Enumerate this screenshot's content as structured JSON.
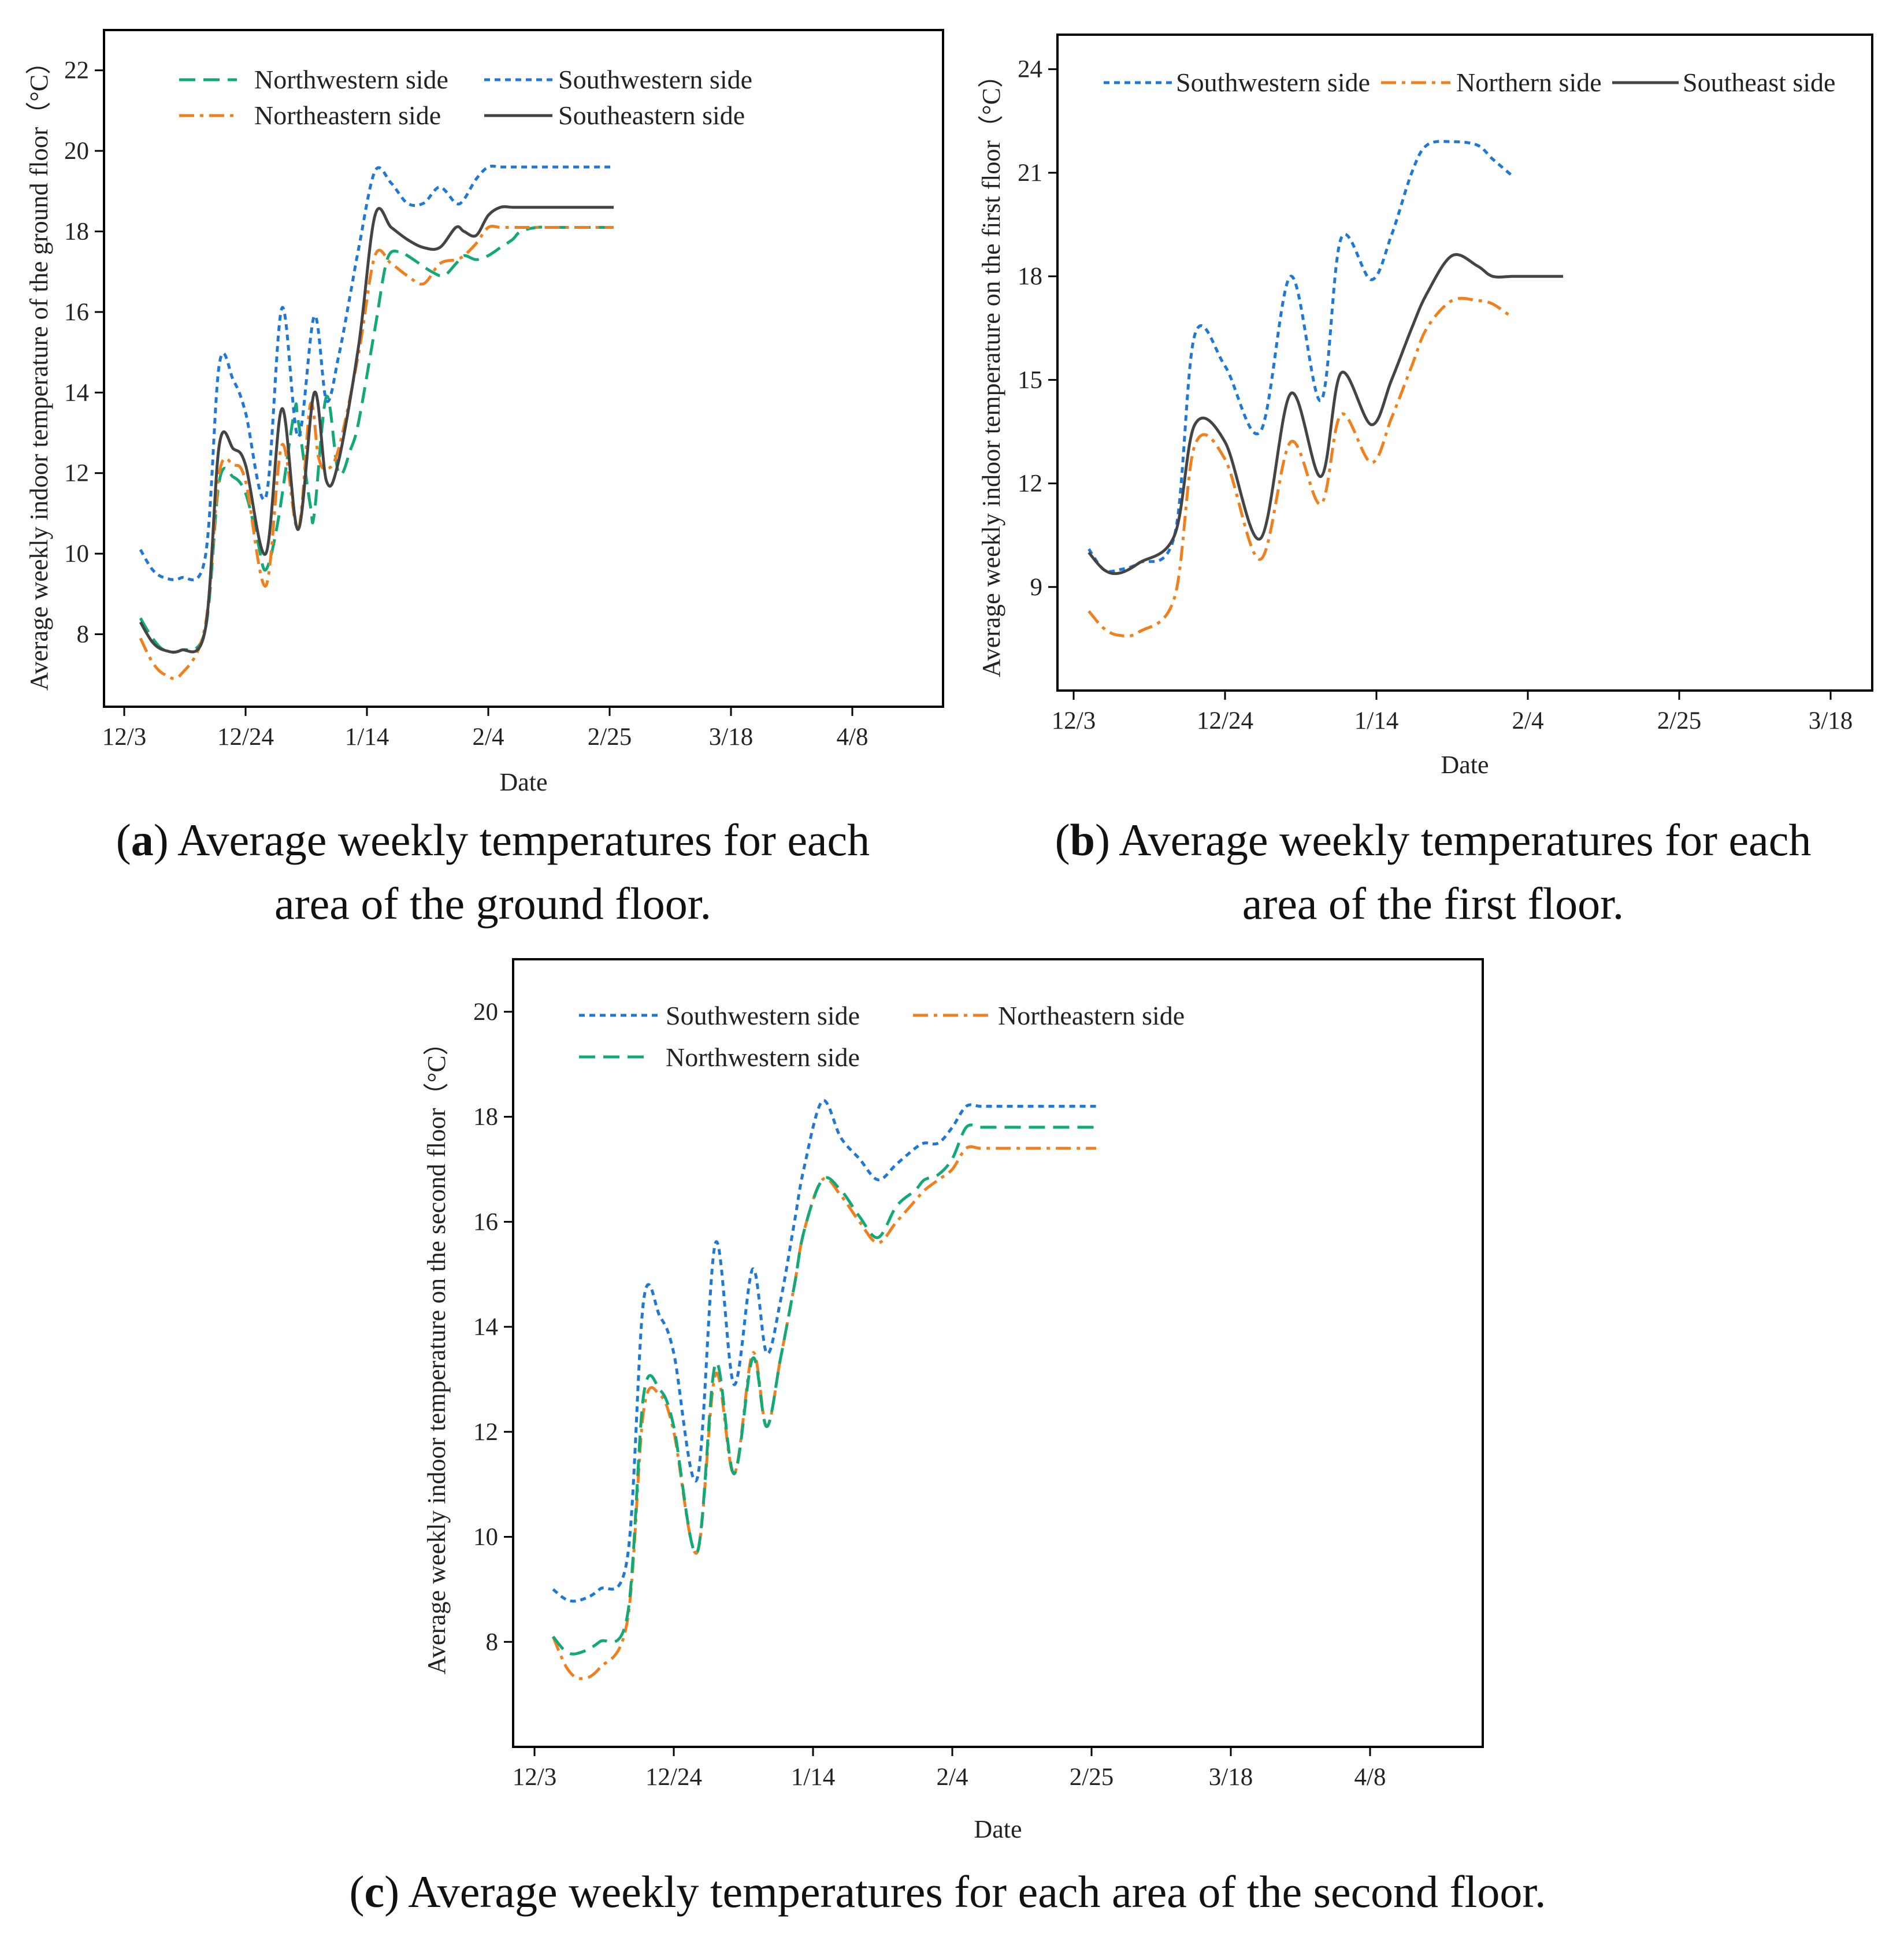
{
  "colors": {
    "blue": "#1f78d6",
    "green": "#13a878",
    "orange": "#f07f1e",
    "black": "#444444"
  },
  "chart_data": [
    {
      "id": "a",
      "type": "line",
      "caption_label": "a",
      "caption_lines": [
        "Average weekly temperatures for each",
        "area of the ground floor."
      ],
      "xlabel": "Date",
      "ylabel": "Average weekly indoor temperature of the ground floor（°C）",
      "x_ticks": [
        "12/3",
        "12/24",
        "1/14",
        "2/4",
        "2/25",
        "3/18",
        "4/8"
      ],
      "ylim": [
        6.2,
        23
      ],
      "y_ticks": [
        8,
        10,
        12,
        14,
        16,
        18,
        20,
        22
      ],
      "series": [
        {
          "name": "Northwestern side",
          "style": "dash",
          "color": "green",
          "x": [
            0.4,
            0.7,
            1.0,
            1.4,
            2.0,
            2.35,
            2.7,
            3.0,
            3.3,
            3.5,
            3.8,
            4.2,
            4.3,
            4.6,
            4.7,
            5.0,
            5.3,
            5.6,
            5.8,
            6.2,
            6.5,
            6.8,
            7.0,
            7.3,
            7.6,
            7.9,
            8.2,
            8.4,
            8.7,
            9.0,
            9.3,
            9.6,
            9.8,
            10.2,
            10.6,
            11.0,
            11.4,
            12.1
          ],
          "values": [
            8.4,
            7.9,
            7.6,
            7.6,
            8.1,
            11.8,
            11.9,
            11.5,
            10.3,
            9.6,
            10.8,
            13.5,
            13.3,
            11.2,
            11.0,
            13.9,
            12.0,
            12.6,
            13.3,
            15.6,
            17.3,
            17.5,
            17.4,
            17.2,
            17.0,
            16.9,
            17.2,
            17.4,
            17.3,
            17.4,
            17.6,
            17.8,
            18.0,
            18.1,
            18.1,
            18.1,
            18.1,
            18.1
          ]
        },
        {
          "name": "Southwestern side",
          "style": "dot",
          "color": "blue",
          "x": [
            0.4,
            0.7,
            1.0,
            1.4,
            2.0,
            2.35,
            2.7,
            3.0,
            3.5,
            3.9,
            4.3,
            4.7,
            5.0,
            5.3,
            5.6,
            5.8,
            6.2,
            6.6,
            7.0,
            7.4,
            7.8,
            8.2,
            8.4,
            8.7,
            9.0,
            9.3,
            9.6,
            9.9,
            10.2,
            10.6,
            11.0,
            12.1
          ],
          "values": [
            10.1,
            9.6,
            9.4,
            9.4,
            9.9,
            14.7,
            14.3,
            13.5,
            11.4,
            16.1,
            12.9,
            15.9,
            13.8,
            14.9,
            16.5,
            17.6,
            19.5,
            19.2,
            18.7,
            18.7,
            19.1,
            18.7,
            18.8,
            19.3,
            19.6,
            19.6,
            19.6,
            19.6,
            19.6,
            19.6,
            19.6,
            19.6
          ]
        },
        {
          "name": "Northeastern side",
          "style": "dashdot",
          "color": "orange",
          "x": [
            0.4,
            0.7,
            1.0,
            1.4,
            2.0,
            2.35,
            2.7,
            3.0,
            3.5,
            3.9,
            4.3,
            4.6,
            4.8,
            5.0,
            5.3,
            5.8,
            6.2,
            6.6,
            7.0,
            7.4,
            7.8,
            8.2,
            8.4,
            8.7,
            9.0,
            9.3,
            9.6,
            9.9,
            10.2,
            10.6,
            11.0,
            12.1
          ],
          "values": [
            7.9,
            7.3,
            7.0,
            7.0,
            8.2,
            12.0,
            12.2,
            11.8,
            9.2,
            12.7,
            10.6,
            13.7,
            12.4,
            12.1,
            12.6,
            15.0,
            17.4,
            17.2,
            16.9,
            16.7,
            17.2,
            17.3,
            17.4,
            17.7,
            18.1,
            18.1,
            18.1,
            18.1,
            18.1,
            18.1,
            18.1,
            18.1
          ]
        },
        {
          "name": "Southeastern side",
          "style": "solid",
          "color": "black",
          "x": [
            0.4,
            0.7,
            1.0,
            1.4,
            2.0,
            2.35,
            2.7,
            3.0,
            3.5,
            3.9,
            4.3,
            4.7,
            5.0,
            5.3,
            5.8,
            6.2,
            6.6,
            7.0,
            7.4,
            7.8,
            8.2,
            8.4,
            8.7,
            9.0,
            9.3,
            9.6,
            9.9,
            10.2,
            10.6,
            11.0,
            12.1
          ],
          "values": [
            8.3,
            7.8,
            7.6,
            7.6,
            8.1,
            12.7,
            12.6,
            12.2,
            10.0,
            13.6,
            10.6,
            14.0,
            11.8,
            12.3,
            15.2,
            18.4,
            18.1,
            17.8,
            17.6,
            17.6,
            18.1,
            18.0,
            17.9,
            18.4,
            18.6,
            18.6,
            18.6,
            18.6,
            18.6,
            18.6,
            18.6
          ]
        }
      ]
    },
    {
      "id": "b",
      "type": "line",
      "caption_label": "b",
      "caption_lines": [
        "Average weekly temperatures for each",
        "area of the first floor."
      ],
      "xlabel": "Date",
      "ylabel": "Average weekly indoor temperature on the first floor（°C）",
      "x_ticks": [
        "12/3",
        "12/24",
        "1/14",
        "2/4",
        "2/25",
        "3/18"
      ],
      "ylim": [
        6,
        25
      ],
      "y_ticks": [
        9,
        12,
        15,
        18,
        21,
        24
      ],
      "series": [
        {
          "name": "Southwestern side",
          "style": "dot",
          "color": "blue",
          "x": [
            0.3,
            0.6,
            0.9,
            1.3,
            2.0,
            2.4,
            3.0,
            3.7,
            4.3,
            4.9,
            5.3,
            5.9,
            6.3,
            6.7,
            7.0,
            7.5,
            8.0,
            8.3,
            8.7
          ],
          "values": [
            10.1,
            9.5,
            9.5,
            9.7,
            10.5,
            16.3,
            15.4,
            13.5,
            18.0,
            14.4,
            19.1,
            17.9,
            19.2,
            21.0,
            21.8,
            21.9,
            21.8,
            21.4,
            20.9
          ]
        },
        {
          "name": "Northern side",
          "style": "dashdot",
          "color": "orange",
          "x": [
            0.3,
            0.6,
            0.9,
            1.3,
            2.0,
            2.4,
            3.0,
            3.7,
            4.3,
            4.9,
            5.3,
            5.9,
            6.3,
            6.7,
            7.0,
            7.5,
            8.0,
            8.3,
            8.7
          ],
          "values": [
            8.3,
            7.8,
            7.6,
            7.7,
            8.7,
            13.1,
            12.7,
            9.8,
            13.2,
            11.4,
            14.0,
            12.6,
            13.9,
            15.4,
            16.5,
            17.3,
            17.3,
            17.2,
            16.8
          ]
        },
        {
          "name": "Southeast side",
          "style": "solid",
          "color": "black",
          "x": [
            0.3,
            0.6,
            0.9,
            1.3,
            2.0,
            2.4,
            3.0,
            3.7,
            4.3,
            4.9,
            5.3,
            5.9,
            6.3,
            6.7,
            7.0,
            7.5,
            8.0,
            8.3,
            8.7,
            9.0,
            9.7
          ],
          "values": [
            10.0,
            9.5,
            9.4,
            9.7,
            10.5,
            13.7,
            13.2,
            10.4,
            14.6,
            12.2,
            15.2,
            13.7,
            15.0,
            16.5,
            17.5,
            18.6,
            18.3,
            18.0,
            18.0,
            18.0,
            18.0
          ]
        }
      ]
    },
    {
      "id": "c",
      "type": "line",
      "caption_label": "c",
      "caption_lines": [
        "Average weekly temperatures for each area of the second floor."
      ],
      "xlabel": "Date",
      "ylabel": "Average weekly indoor temperature on the second floor（°C）",
      "x_ticks": [
        "12/3",
        "12/24",
        "1/14",
        "2/4",
        "2/25",
        "3/18",
        "4/8"
      ],
      "ylim": [
        6,
        21
      ],
      "y_ticks": [
        8,
        10,
        12,
        14,
        16,
        18,
        20
      ],
      "series": [
        {
          "name": "Southwestern side",
          "style": "dot",
          "color": "blue",
          "x": [
            0.4,
            0.7,
            1.0,
            1.4,
            2.0,
            2.35,
            2.7,
            3.0,
            3.5,
            3.9,
            4.3,
            4.7,
            5.0,
            5.3,
            5.6,
            5.8,
            6.2,
            6.6,
            7.0,
            7.4,
            7.8,
            8.2,
            8.4,
            8.7,
            9.0,
            9.3,
            9.6,
            9.9,
            10.2,
            10.6,
            11.0,
            12.1
          ],
          "values": [
            9.0,
            8.8,
            8.8,
            9.0,
            9.6,
            14.5,
            14.2,
            13.5,
            11.1,
            15.6,
            12.9,
            15.1,
            13.5,
            14.5,
            16.0,
            17.0,
            18.3,
            17.6,
            17.2,
            16.8,
            17.1,
            17.4,
            17.5,
            17.5,
            17.8,
            18.2,
            18.2,
            18.2,
            18.2,
            18.2,
            18.2,
            18.2
          ]
        },
        {
          "name": "Northeastern side",
          "style": "dashdot",
          "color": "orange",
          "x": [
            0.4,
            0.7,
            1.0,
            1.4,
            2.0,
            2.35,
            2.7,
            3.0,
            3.5,
            3.9,
            4.3,
            4.7,
            5.0,
            5.3,
            5.6,
            5.8,
            6.2,
            6.6,
            7.0,
            7.4,
            7.8,
            8.2,
            8.4,
            8.7,
            9.0,
            9.3,
            9.6,
            9.9,
            10.2,
            10.6,
            11.0,
            12.1
          ],
          "values": [
            8.1,
            7.5,
            7.3,
            7.5,
            8.4,
            12.4,
            12.7,
            12.0,
            9.7,
            13.1,
            11.2,
            13.5,
            12.1,
            13.4,
            14.8,
            15.8,
            16.8,
            16.5,
            16.0,
            15.6,
            16.0,
            16.4,
            16.6,
            16.8,
            17.0,
            17.4,
            17.4,
            17.4,
            17.4,
            17.4,
            17.4,
            17.4
          ]
        },
        {
          "name": "Northwestern side",
          "style": "dash",
          "color": "green",
          "x": [
            0.4,
            0.7,
            1.0,
            1.4,
            2.0,
            2.35,
            2.7,
            3.0,
            3.5,
            3.9,
            4.3,
            4.7,
            5.0,
            5.3,
            5.6,
            5.8,
            6.2,
            6.6,
            7.0,
            7.4,
            7.8,
            8.2,
            8.4,
            8.7,
            9.0,
            9.3,
            9.6,
            9.9,
            10.2,
            10.6,
            11.0,
            12.1
          ],
          "values": [
            8.1,
            7.8,
            7.8,
            8.0,
            8.5,
            12.7,
            12.8,
            12.1,
            9.7,
            13.3,
            11.2,
            13.4,
            12.1,
            13.4,
            14.8,
            15.8,
            16.8,
            16.6,
            16.1,
            15.7,
            16.3,
            16.6,
            16.8,
            16.9,
            17.2,
            17.8,
            17.8,
            17.8,
            17.8,
            17.8,
            17.8,
            17.8
          ]
        }
      ]
    }
  ]
}
